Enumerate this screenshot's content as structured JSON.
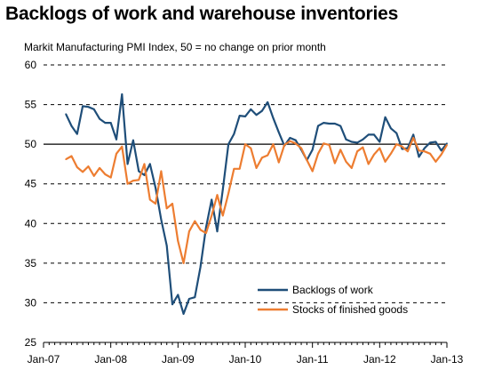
{
  "chart_data": {
    "type": "line",
    "title": "Backlogs of work and warehouse inventories",
    "subtitle": "Markit Manufacturing PMI Index, 50 = no change on prior month",
    "xlabel": "",
    "ylabel": "",
    "ylim": [
      25,
      60
    ],
    "yticks": [
      25,
      30,
      35,
      40,
      45,
      50,
      55,
      60
    ],
    "xlim": [
      "2007-01",
      "2013-01"
    ],
    "xticks": [
      "Jan-07",
      "Jan-08",
      "Jan-09",
      "Jan-10",
      "Jan-11",
      "Jan-12",
      "Jan-13"
    ],
    "reference_line": 50,
    "grid": "horizontal dashed",
    "legend_position": "bottom-right",
    "series": [
      {
        "name": "Backlogs of work",
        "color": "#1f4e79",
        "x": [
          "2007-05",
          "2007-06",
          "2007-07",
          "2007-08",
          "2007-09",
          "2007-10",
          "2007-11",
          "2007-12",
          "2008-01",
          "2008-02",
          "2008-03",
          "2008-04",
          "2008-05",
          "2008-06",
          "2008-07",
          "2008-08",
          "2008-09",
          "2008-10",
          "2008-11",
          "2008-12",
          "2009-01",
          "2009-02",
          "2009-03",
          "2009-04",
          "2009-05",
          "2009-06",
          "2009-07",
          "2009-08",
          "2009-09",
          "2009-10",
          "2009-11",
          "2009-12",
          "2010-01",
          "2010-02",
          "2010-03",
          "2010-04",
          "2010-05",
          "2010-06",
          "2010-07",
          "2010-08",
          "2010-09",
          "2010-10",
          "2010-11",
          "2010-12",
          "2011-01",
          "2011-02",
          "2011-03",
          "2011-04",
          "2011-05",
          "2011-06",
          "2011-07",
          "2011-08",
          "2011-09",
          "2011-10",
          "2011-11",
          "2011-12",
          "2012-01",
          "2012-02",
          "2012-03",
          "2012-04",
          "2012-05",
          "2012-06",
          "2012-07",
          "2012-08",
          "2012-09",
          "2012-10",
          "2012-11",
          "2012-12",
          "2013-01"
        ],
        "values": [
          53.8,
          52.3,
          51.3,
          54.8,
          54.7,
          54.4,
          53.2,
          52.7,
          52.7,
          50.6,
          56.3,
          47.5,
          50.5,
          46.6,
          46.1,
          47.5,
          44.5,
          40.5,
          37.2,
          29.8,
          31.0,
          28.6,
          30.5,
          30.7,
          34.5,
          39.5,
          43.0,
          39.0,
          44.3,
          50.0,
          51.3,
          53.6,
          53.5,
          54.4,
          53.7,
          54.2,
          55.3,
          53.3,
          51.5,
          49.8,
          50.8,
          50.5,
          49.3,
          48.0,
          49.3,
          52.3,
          52.7,
          52.6,
          52.6,
          52.3,
          50.6,
          50.3,
          50.2,
          50.6,
          51.2,
          51.2,
          50.3,
          53.4,
          52.0,
          51.4,
          49.4,
          49.5,
          51.2,
          48.4,
          49.5,
          50.2,
          50.3,
          49.2,
          50.1
        ]
      },
      {
        "name": "Stocks of finished goods",
        "color": "#ed7d31",
        "x": [
          "2007-05",
          "2007-06",
          "2007-07",
          "2007-08",
          "2007-09",
          "2007-10",
          "2007-11",
          "2007-12",
          "2008-01",
          "2008-02",
          "2008-03",
          "2008-04",
          "2008-05",
          "2008-06",
          "2008-07",
          "2008-08",
          "2008-09",
          "2008-10",
          "2008-11",
          "2008-12",
          "2009-01",
          "2009-02",
          "2009-03",
          "2009-04",
          "2009-05",
          "2009-06",
          "2009-07",
          "2009-08",
          "2009-09",
          "2009-10",
          "2009-11",
          "2009-12",
          "2010-01",
          "2010-02",
          "2010-03",
          "2010-04",
          "2010-05",
          "2010-06",
          "2010-07",
          "2010-08",
          "2010-09",
          "2010-10",
          "2010-11",
          "2010-12",
          "2011-01",
          "2011-02",
          "2011-03",
          "2011-04",
          "2011-05",
          "2011-06",
          "2011-07",
          "2011-08",
          "2011-09",
          "2011-10",
          "2011-11",
          "2011-12",
          "2012-01",
          "2012-02",
          "2012-03",
          "2012-04",
          "2012-05",
          "2012-06",
          "2012-07",
          "2012-08",
          "2012-09",
          "2012-10",
          "2012-11",
          "2012-12",
          "2013-01"
        ],
        "values": [
          48.1,
          48.5,
          47.1,
          46.5,
          47.2,
          46.0,
          47.0,
          46.2,
          45.8,
          48.8,
          49.7,
          45.0,
          45.4,
          45.5,
          47.5,
          43.0,
          42.5,
          46.6,
          41.9,
          42.5,
          37.8,
          35.0,
          39.0,
          40.3,
          39.2,
          38.8,
          41.0,
          43.6,
          41.0,
          43.8,
          46.9,
          46.9,
          50.0,
          49.5,
          47.0,
          48.3,
          48.6,
          50.0,
          47.7,
          49.9,
          50.4,
          50.1,
          49.5,
          48.0,
          46.6,
          48.8,
          50.1,
          49.9,
          47.6,
          49.3,
          47.8,
          47.0,
          49.1,
          49.6,
          47.5,
          48.7,
          49.5,
          47.8,
          48.8,
          50.0,
          49.7,
          49.1,
          50.8,
          49.2,
          49.1,
          48.8,
          47.8,
          48.7,
          49.9
        ]
      }
    ]
  }
}
